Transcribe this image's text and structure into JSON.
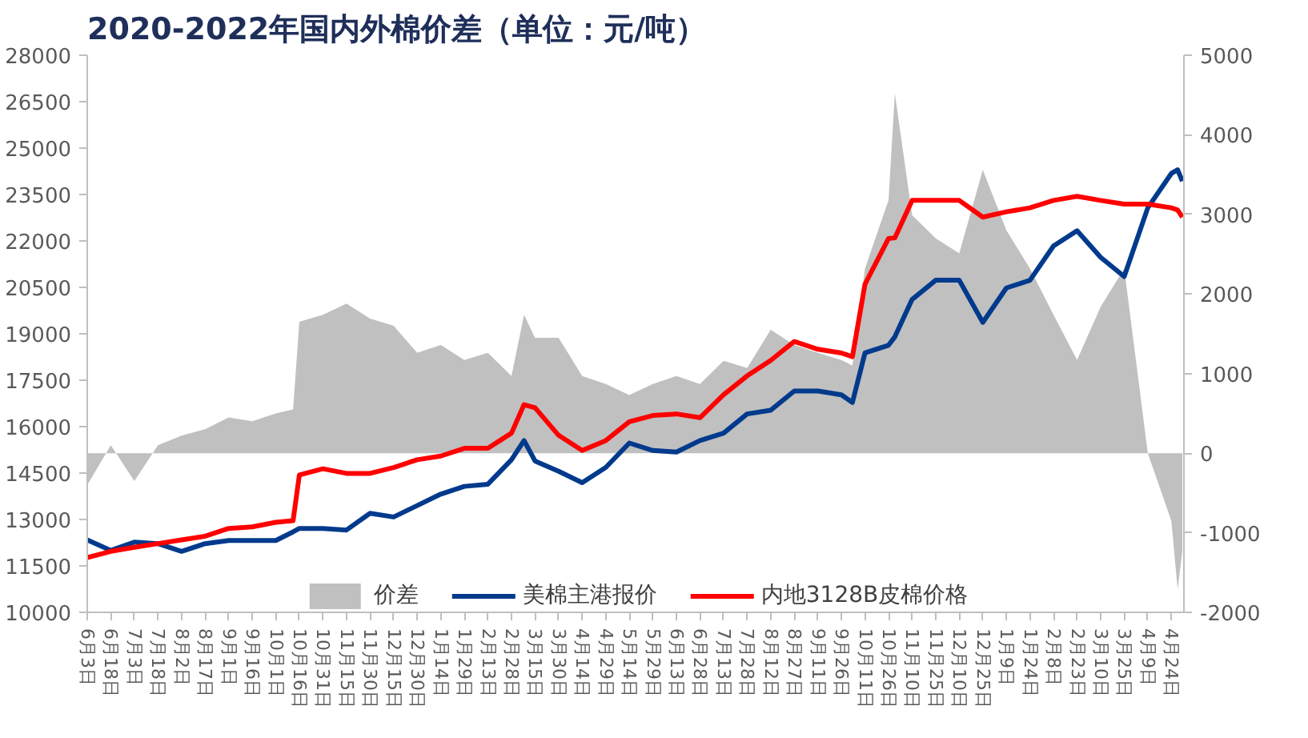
{
  "chart_data": {
    "type": "line",
    "title": "2020-2022年国内外棉价差（单位：元/吨）",
    "x": [
      "2020-06-03",
      "2020-06-18",
      "2020-07-03",
      "2020-07-18",
      "2020-08-02",
      "2020-08-17",
      "2020-09-01",
      "2020-09-16",
      "2020-10-01",
      "2020-10-12",
      "2020-10-16",
      "2020-10-31",
      "2020-11-15",
      "2020-11-30",
      "2020-12-15",
      "2020-12-30",
      "2021-01-14",
      "2021-01-29",
      "2021-02-13",
      "2021-02-28",
      "2021-03-08",
      "2021-03-15",
      "2021-03-30",
      "2021-04-14",
      "2021-04-29",
      "2021-05-14",
      "2021-05-29",
      "2021-06-13",
      "2021-06-28",
      "2021-07-13",
      "2021-07-28",
      "2021-08-12",
      "2021-08-27",
      "2021-09-11",
      "2021-09-26",
      "2021-10-03",
      "2021-10-11",
      "2021-10-26",
      "2021-10-30",
      "2021-11-10",
      "2021-11-25",
      "2021-12-10",
      "2021-12-25",
      "2022-01-09",
      "2022-01-24",
      "2022-02-08",
      "2022-02-23",
      "2022-03-10",
      "2022-03-25",
      "2022-04-09",
      "2022-04-24",
      "2022-04-28",
      "2022-05-01"
    ],
    "series": [
      {
        "name": "价差",
        "type": "area",
        "axis": "y2",
        "color": "#c0c0c0",
        "values": [
          -400,
          100,
          -350,
          100,
          220,
          300,
          450,
          400,
          500,
          550,
          1650,
          1740,
          1880,
          1690,
          1600,
          1260,
          1360,
          1170,
          1260,
          970,
          1740,
          1450,
          1450,
          970,
          870,
          730,
          870,
          970,
          870,
          1160,
          1070,
          1550,
          1360,
          1260,
          1170,
          1100,
          2320,
          3180,
          4520,
          2990,
          2700,
          2510,
          3560,
          2800,
          2320,
          1740,
          1170,
          1840,
          2320,
          0,
          -850,
          -1710,
          -1230
        ]
      },
      {
        "name": "美棉主港报价",
        "type": "line",
        "color": "#003a8c",
        "values": [
          12340,
          12000,
          12270,
          12220,
          11970,
          12220,
          12320,
          12320,
          12320,
          12600,
          12710,
          12710,
          12660,
          13200,
          13080,
          13450,
          13820,
          14070,
          14140,
          14930,
          15550,
          14890,
          14560,
          14190,
          14680,
          15470,
          15230,
          15180,
          15550,
          15790,
          16410,
          16530,
          17150,
          17150,
          17030,
          16780,
          18380,
          18630,
          18900,
          20110,
          20730,
          20730,
          19370,
          20480,
          20730,
          21840,
          22330,
          21470,
          20850,
          23070,
          24180,
          24300,
          23930
        ]
      },
      {
        "name": "内地3128B皮棉价格",
        "type": "line",
        "color": "#ff0000",
        "values": [
          11770,
          11970,
          12100,
          12220,
          12340,
          12460,
          12710,
          12760,
          12910,
          12960,
          14440,
          14640,
          14490,
          14490,
          14680,
          14930,
          15050,
          15300,
          15300,
          15790,
          16710,
          16610,
          15720,
          15230,
          15550,
          16160,
          16360,
          16410,
          16290,
          17030,
          17640,
          18140,
          18750,
          18500,
          18380,
          18260,
          20600,
          22080,
          22100,
          23310,
          23310,
          23310,
          22770,
          22940,
          23070,
          23310,
          23440,
          23310,
          23190,
          23190,
          23070,
          23000,
          22770
        ]
      }
    ],
    "xlim": [
      "2020-06-03",
      "2022-05-02"
    ],
    "xticks": [
      {
        "value": "2020-06-03",
        "label": "6月3日"
      },
      {
        "value": "2020-06-18",
        "label": "6月18日"
      },
      {
        "value": "2020-07-03",
        "label": "7月3日"
      },
      {
        "value": "2020-07-18",
        "label": "7月18日"
      },
      {
        "value": "2020-08-02",
        "label": "8月2日"
      },
      {
        "value": "2020-08-17",
        "label": "8月17日"
      },
      {
        "value": "2020-09-01",
        "label": "9月1日"
      },
      {
        "value": "2020-09-16",
        "label": "9月16日"
      },
      {
        "value": "2020-10-01",
        "label": "10月1日"
      },
      {
        "value": "2020-10-16",
        "label": "10月16日"
      },
      {
        "value": "2020-10-31",
        "label": "10月31日"
      },
      {
        "value": "2020-11-15",
        "label": "11月15日"
      },
      {
        "value": "2020-11-30",
        "label": "11月30日"
      },
      {
        "value": "2020-12-15",
        "label": "12月15日"
      },
      {
        "value": "2020-12-30",
        "label": "12月30日"
      },
      {
        "value": "2021-01-14",
        "label": "1月14日"
      },
      {
        "value": "2021-01-29",
        "label": "1月29日"
      },
      {
        "value": "2021-02-13",
        "label": "2月13日"
      },
      {
        "value": "2021-02-28",
        "label": "2月28日"
      },
      {
        "value": "2021-03-15",
        "label": "3月15日"
      },
      {
        "value": "2021-03-30",
        "label": "3月30日"
      },
      {
        "value": "2021-04-14",
        "label": "4月14日"
      },
      {
        "value": "2021-04-29",
        "label": "4月29日"
      },
      {
        "value": "2021-05-14",
        "label": "5月14日"
      },
      {
        "value": "2021-05-29",
        "label": "5月29日"
      },
      {
        "value": "2021-06-13",
        "label": "6月13日"
      },
      {
        "value": "2021-06-28",
        "label": "6月28日"
      },
      {
        "value": "2021-07-13",
        "label": "7月13日"
      },
      {
        "value": "2021-07-28",
        "label": "7月28日"
      },
      {
        "value": "2021-08-12",
        "label": "8月12日"
      },
      {
        "value": "2021-08-27",
        "label": "8月27日"
      },
      {
        "value": "2021-09-11",
        "label": "9月11日"
      },
      {
        "value": "2021-09-26",
        "label": "9月26日"
      },
      {
        "value": "2021-10-11",
        "label": "10月11日"
      },
      {
        "value": "2021-10-26",
        "label": "10月26日"
      },
      {
        "value": "2021-11-10",
        "label": "11月10日"
      },
      {
        "value": "2021-11-25",
        "label": "11月25日"
      },
      {
        "value": "2021-12-10",
        "label": "12月10日"
      },
      {
        "value": "2021-12-25",
        "label": "12月25日"
      },
      {
        "value": "2022-01-09",
        "label": "1月9日"
      },
      {
        "value": "2022-01-24",
        "label": "1月24日"
      },
      {
        "value": "2022-02-08",
        "label": "2月8日"
      },
      {
        "value": "2022-02-23",
        "label": "2月23日"
      },
      {
        "value": "2022-03-10",
        "label": "3月10日"
      },
      {
        "value": "2022-03-25",
        "label": "3月25日"
      },
      {
        "value": "2022-04-09",
        "label": "4月9日"
      },
      {
        "value": "2022-04-24",
        "label": "4月24日"
      }
    ],
    "ylim": [
      10000,
      28000
    ],
    "yticks": [
      10000,
      11500,
      13000,
      14500,
      16000,
      17500,
      19000,
      20500,
      22000,
      23500,
      25000,
      26500,
      28000
    ],
    "y2lim": [
      -2000,
      5000
    ],
    "y2ticks": [
      -2000,
      -1000,
      0,
      1000,
      2000,
      3000,
      4000,
      5000
    ],
    "grid": false,
    "legend": "bottom",
    "line_style": "solid",
    "marker": "none"
  }
}
